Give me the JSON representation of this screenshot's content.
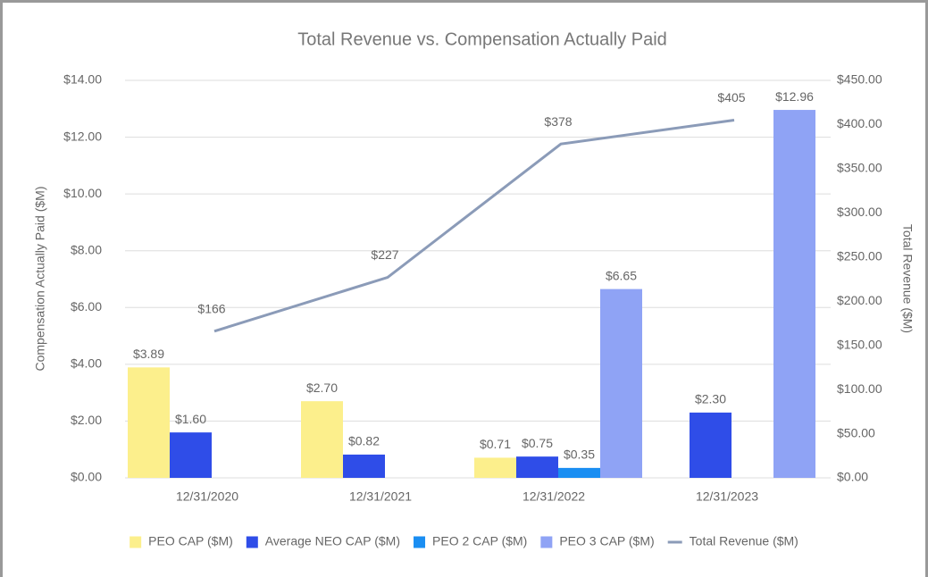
{
  "chart_data": {
    "type": "bar",
    "title": "Total Revenue vs. Compensation Actually Paid",
    "y_label": "Compensation Actually Paid ($M)",
    "y2_label": "Total Revenue ($M)",
    "categories": [
      "12/31/2020",
      "12/31/2021",
      "12/31/2022",
      "12/31/2023"
    ],
    "series": [
      {
        "name": "PEO CAP ($M)",
        "type": "bar",
        "color": "#fcef8c",
        "values": [
          3.89,
          2.7,
          0.71,
          null
        ],
        "value_labels": [
          "$3.89",
          "$2.70",
          "$0.71",
          null
        ]
      },
      {
        "name": "Average NEO CAP ($M)",
        "type": "bar",
        "color": "#2f4de8",
        "values": [
          1.6,
          0.82,
          0.75,
          2.3
        ],
        "value_labels": [
          "$1.60",
          "$0.82",
          "$0.75",
          "$2.30"
        ]
      },
      {
        "name": "PEO 2 CAP ($M)",
        "type": "bar",
        "color": "#1a8ef2",
        "values": [
          null,
          null,
          0.35,
          null
        ],
        "value_labels": [
          null,
          null,
          "$0.35",
          null
        ]
      },
      {
        "name": "PEO 3 CAP ($M)",
        "type": "bar",
        "color": "#8fa3f5",
        "values": [
          null,
          null,
          6.65,
          12.96
        ],
        "value_labels": [
          null,
          null,
          "$6.65",
          "$12.96"
        ]
      },
      {
        "name": "Total Revenue ($M)",
        "type": "line",
        "axis": "y2",
        "color": "#8b9bb8",
        "values": [
          166,
          227,
          378,
          405
        ],
        "value_labels": [
          "$166",
          "$227",
          "$378",
          "$405"
        ]
      }
    ],
    "ylim": [
      0,
      14
    ],
    "yticks": [
      {
        "value": 0,
        "label": "$0.00"
      },
      {
        "value": 2,
        "label": "$2.00"
      },
      {
        "value": 4,
        "label": "$4.00"
      },
      {
        "value": 6,
        "label": "$6.00"
      },
      {
        "value": 8,
        "label": "$8.00"
      },
      {
        "value": 10,
        "label": "$10.00"
      },
      {
        "value": 12,
        "label": "$12.00"
      },
      {
        "value": 14,
        "label": "$14.00"
      }
    ],
    "y2lim": [
      0,
      450
    ],
    "y2ticks": [
      {
        "value": 0,
        "label": "$0.00"
      },
      {
        "value": 50,
        "label": "$50.00"
      },
      {
        "value": 100,
        "label": "$100.00"
      },
      {
        "value": 150,
        "label": "$150.00"
      },
      {
        "value": 200,
        "label": "$200.00"
      },
      {
        "value": 250,
        "label": "$250.00"
      },
      {
        "value": 300,
        "label": "$300.00"
      },
      {
        "value": 350,
        "label": "$350.00"
      },
      {
        "value": 400,
        "label": "$400.00"
      },
      {
        "value": 450,
        "label": "$450.00"
      }
    ],
    "grid": true,
    "legend": "bottom"
  }
}
